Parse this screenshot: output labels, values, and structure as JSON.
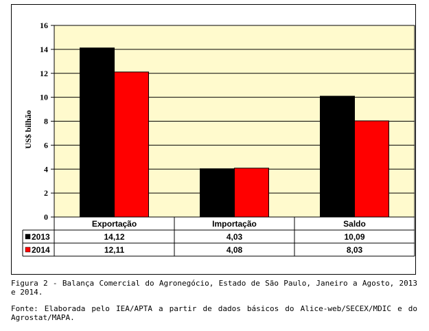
{
  "chart_data": {
    "type": "bar",
    "categories": [
      "Exportação",
      "Importação",
      "Saldo"
    ],
    "series": [
      {
        "name": "2013",
        "values": [
          14.12,
          4.03,
          10.09
        ],
        "value_labels": [
          "14,12",
          "4,03",
          "10,09"
        ],
        "color": "#000000"
      },
      {
        "name": "2014",
        "values": [
          12.11,
          4.08,
          8.03
        ],
        "value_labels": [
          "12,11",
          "4,08",
          "8,03"
        ],
        "color": "#ff0000"
      }
    ],
    "ylabel": "US$ bilhão",
    "ylim": [
      0,
      16
    ],
    "yticks": [
      0,
      2,
      4,
      6,
      8,
      10,
      12,
      14,
      16
    ],
    "grid": true,
    "plot_background": "#fffacd",
    "legend": "data-table"
  },
  "captions": {
    "figure": "Figura 2 - Balança Comercial do Agronegócio, Estado de São Paulo, Janeiro a Agosto, 2013 e 2014.",
    "source": "Fonte: Elaborada pelo IEA/APTA a partir de dados básicos do Alice-web/SECEX/MDIC e do Agrostat/MAPA."
  }
}
